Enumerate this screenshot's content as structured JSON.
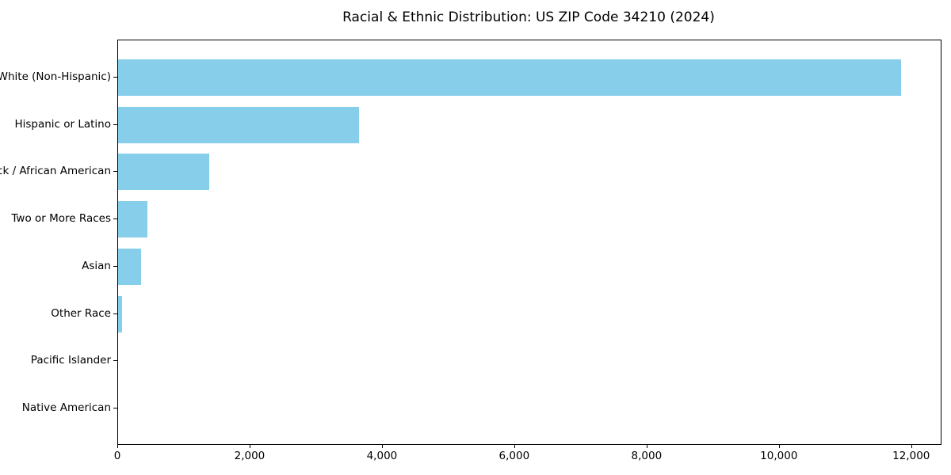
{
  "title": "Racial & Ethnic Distribution: US ZIP Code 34210 (2024)",
  "chart_data": {
    "type": "bar",
    "orientation": "horizontal",
    "title": "Racial & Ethnic Distribution: US ZIP Code 34210 (2024)",
    "categories": [
      "White (Non-Hispanic)",
      "Hispanic or Latino",
      "Black / African American",
      "Two or More Races",
      "Asian",
      "Other Race",
      "Pacific Islander",
      "Native American"
    ],
    "values": [
      11840,
      3640,
      1380,
      440,
      350,
      60,
      0,
      0
    ],
    "xlabel": "",
    "ylabel": "",
    "xlim": [
      0,
      12434
    ],
    "xticks": [
      0,
      2000,
      4000,
      6000,
      8000,
      10000,
      12000
    ],
    "xtick_labels": [
      "0",
      "2,000",
      "4,000",
      "6,000",
      "8,000",
      "10,000",
      "12,000"
    ],
    "bar_color": "#87CEEB",
    "spine_color": "#000000",
    "grid": false,
    "legend_position": "none"
  }
}
